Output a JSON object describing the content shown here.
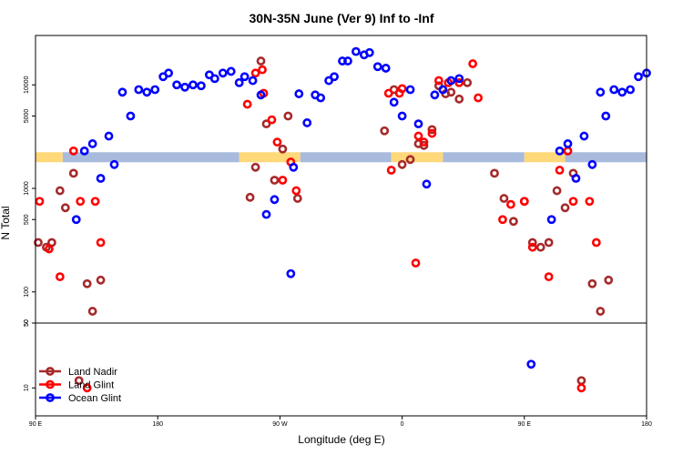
{
  "chart_data": {
    "type": "scatter",
    "title": "30N-35N June (Ver 9)   Inf to -Inf",
    "xlabel": "Longitude (deg E)",
    "ylabel": "N Total",
    "x_ticks": [
      {
        "pos": 0,
        "label": "90 E"
      },
      {
        "pos": 90,
        "label": "180"
      },
      {
        "pos": 180,
        "label": "90 W"
      },
      {
        "pos": 270,
        "label": "0"
      },
      {
        "pos": 360,
        "label": "90 E"
      },
      {
        "pos": 450,
        "label": "180"
      }
    ],
    "xlim": [
      0,
      450
    ],
    "y_scale": "log",
    "upper_panel": {
      "ylim": [
        50,
        30000
      ],
      "y_ticks": [
        {
          "v": 50,
          "label": "50"
        },
        {
          "v": 100,
          "label": "100"
        },
        {
          "v": 500,
          "label": "500"
        },
        {
          "v": 1000,
          "label": "1000"
        },
        {
          "v": 5000,
          "label": "5000"
        },
        {
          "v": 10000,
          "label": "10000"
        }
      ]
    },
    "lower_panel": {
      "ylim": [
        5,
        50
      ],
      "y_ticks": [
        {
          "v": 10,
          "label": "10"
        },
        {
          "v": 50,
          "label": "50"
        }
      ]
    },
    "legend_position": "bottom-left",
    "background_band": {
      "y": 2000,
      "land_color": "#FFD879",
      "ocean_color": "#A8BBDD"
    },
    "series": [
      {
        "name": "Land Nadir",
        "color": "#A52A2A",
        "points": [
          [
            2,
            300
          ],
          [
            8,
            270
          ],
          [
            12,
            300
          ],
          [
            18,
            950
          ],
          [
            22,
            650
          ],
          [
            28,
            1400
          ],
          [
            32,
            12
          ],
          [
            38,
            120
          ],
          [
            42,
            65
          ],
          [
            48,
            130
          ],
          [
            158,
            820
          ],
          [
            162,
            1600
          ],
          [
            166,
            17000
          ],
          [
            170,
            4200
          ],
          [
            176,
            1200
          ],
          [
            182,
            2400
          ],
          [
            186,
            5000
          ],
          [
            193,
            800
          ],
          [
            257,
            3600
          ],
          [
            264,
            9000
          ],
          [
            270,
            1700
          ],
          [
            276,
            1900
          ],
          [
            282,
            2700
          ],
          [
            286,
            2600
          ],
          [
            292,
            3700
          ],
          [
            297,
            9800
          ],
          [
            302,
            8200
          ],
          [
            306,
            8500
          ],
          [
            312,
            7300
          ],
          [
            318,
            10500
          ],
          [
            338,
            1400
          ],
          [
            345,
            800
          ],
          [
            352,
            480
          ],
          [
            360,
            750
          ],
          [
            366,
            300
          ],
          [
            372,
            270
          ],
          [
            378,
            300
          ],
          [
            384,
            950
          ],
          [
            390,
            650
          ],
          [
            396,
            1400
          ],
          [
            402,
            12
          ],
          [
            410,
            120
          ],
          [
            416,
            65
          ],
          [
            422,
            130
          ]
        ]
      },
      {
        "name": "Land Glint",
        "color": "#FF0000",
        "points": [
          [
            3,
            750
          ],
          [
            10,
            260
          ],
          [
            18,
            140
          ],
          [
            28,
            2300
          ],
          [
            33,
            750
          ],
          [
            38,
            10
          ],
          [
            44,
            750
          ],
          [
            48,
            300
          ],
          [
            156,
            6500
          ],
          [
            162,
            13000
          ],
          [
            167,
            14000
          ],
          [
            168,
            8300
          ],
          [
            174,
            4600
          ],
          [
            178,
            2800
          ],
          [
            182,
            1200
          ],
          [
            188,
            1800
          ],
          [
            192,
            950
          ],
          [
            262,
            1500
          ],
          [
            268,
            8300
          ],
          [
            270,
            9200
          ],
          [
            282,
            3200
          ],
          [
            286,
            2800
          ],
          [
            292,
            3400
          ],
          [
            297,
            11000
          ],
          [
            304,
            10500
          ],
          [
            312,
            10500
          ],
          [
            322,
            16000
          ],
          [
            326,
            7500
          ],
          [
            344,
            500
          ],
          [
            350,
            700
          ],
          [
            360,
            750
          ],
          [
            366,
            270
          ],
          [
            378,
            140
          ],
          [
            386,
            1500
          ],
          [
            392,
            2300
          ],
          [
            396,
            750
          ],
          [
            402,
            10
          ],
          [
            408,
            750
          ],
          [
            413,
            300
          ],
          [
            260,
            8300
          ],
          [
            280,
            190
          ]
        ]
      },
      {
        "name": "Ocean Glint",
        "color": "#0000FF",
        "points": [
          [
            30,
            500
          ],
          [
            36,
            2300
          ],
          [
            42,
            2700
          ],
          [
            48,
            1250
          ],
          [
            54,
            3200
          ],
          [
            58,
            1700
          ],
          [
            64,
            8500
          ],
          [
            70,
            5000
          ],
          [
            76,
            9000
          ],
          [
            82,
            8500
          ],
          [
            88,
            9000
          ],
          [
            94,
            12000
          ],
          [
            98,
            13000
          ],
          [
            104,
            10000
          ],
          [
            110,
            9500
          ],
          [
            116,
            10000
          ],
          [
            122,
            9800
          ],
          [
            128,
            12500
          ],
          [
            132,
            11500
          ],
          [
            138,
            13000
          ],
          [
            144,
            13500
          ],
          [
            150,
            10500
          ],
          [
            154,
            12000
          ],
          [
            160,
            11000
          ],
          [
            166,
            8000
          ],
          [
            170,
            560
          ],
          [
            176,
            780
          ],
          [
            188,
            150
          ],
          [
            190,
            1600
          ],
          [
            194,
            8200
          ],
          [
            200,
            4300
          ],
          [
            206,
            8000
          ],
          [
            210,
            7500
          ],
          [
            216,
            11000
          ],
          [
            220,
            12000
          ],
          [
            226,
            17000
          ],
          [
            230,
            17000
          ],
          [
            236,
            21000
          ],
          [
            242,
            19500
          ],
          [
            246,
            20500
          ],
          [
            252,
            15000
          ],
          [
            258,
            14500
          ],
          [
            264,
            6800
          ],
          [
            270,
            5000
          ],
          [
            276,
            9000
          ],
          [
            282,
            4200
          ],
          [
            288,
            1100
          ],
          [
            294,
            8000
          ],
          [
            300,
            9000
          ],
          [
            306,
            11000
          ],
          [
            312,
            11500
          ],
          [
            365,
            18
          ],
          [
            380,
            500
          ],
          [
            386,
            2300
          ],
          [
            392,
            2700
          ],
          [
            398,
            1250
          ],
          [
            404,
            3200
          ],
          [
            410,
            1700
          ],
          [
            416,
            8500
          ],
          [
            420,
            5000
          ],
          [
            426,
            9000
          ],
          [
            432,
            8500
          ],
          [
            438,
            9000
          ],
          [
            444,
            12000
          ],
          [
            450,
            13000
          ]
        ]
      }
    ]
  }
}
